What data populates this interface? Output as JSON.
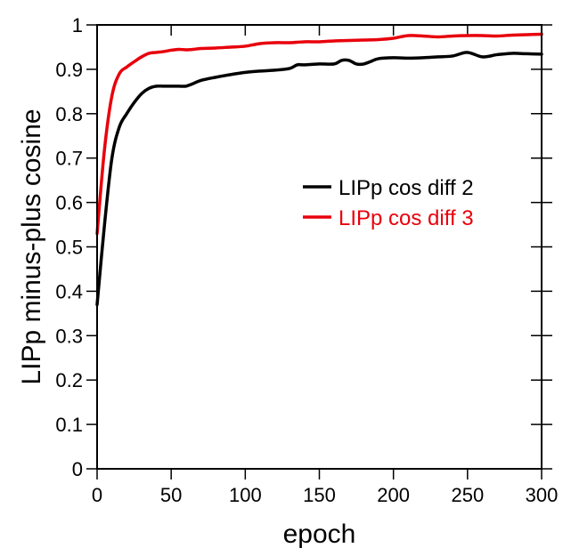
{
  "chart_data": {
    "type": "line",
    "title": "",
    "xlabel": "epoch",
    "ylabel": "LIPp minus-plus cosine",
    "xlim": [
      0,
      300
    ],
    "ylim": [
      0,
      1
    ],
    "xticks": [
      0,
      50,
      100,
      150,
      200,
      250,
      300
    ],
    "yticks": [
      0,
      0.1,
      0.2,
      0.3,
      0.4,
      0.5,
      0.6,
      0.7,
      0.8,
      0.9,
      1
    ],
    "xtick_labels": [
      "0",
      "50",
      "100",
      "150",
      "200",
      "250",
      "300"
    ],
    "ytick_labels": [
      "0",
      "0.1",
      "0.2",
      "0.3",
      "0.4",
      "0.5",
      "0.6",
      "0.7",
      "0.8",
      "0.9",
      "1"
    ],
    "grid": false,
    "legend_position": "center-right",
    "series": [
      {
        "name": "LIPp cos diff 2",
        "color": "#000000",
        "x": [
          0,
          5,
          10,
          15,
          20,
          25,
          30,
          35,
          40,
          45,
          50,
          55,
          60,
          65,
          70,
          80,
          90,
          100,
          110,
          120,
          130,
          135,
          140,
          150,
          160,
          165,
          170,
          175,
          180,
          185,
          190,
          200,
          210,
          220,
          230,
          240,
          250,
          260,
          270,
          280,
          290,
          300
        ],
        "y": [
          0.37,
          0.55,
          0.7,
          0.77,
          0.8,
          0.825,
          0.845,
          0.857,
          0.862,
          0.862,
          0.862,
          0.862,
          0.862,
          0.868,
          0.875,
          0.882,
          0.888,
          0.893,
          0.896,
          0.898,
          0.902,
          0.91,
          0.91,
          0.912,
          0.912,
          0.92,
          0.92,
          0.912,
          0.912,
          0.918,
          0.924,
          0.926,
          0.925,
          0.926,
          0.928,
          0.93,
          0.938,
          0.928,
          0.933,
          0.936,
          0.935,
          0.934
        ]
      },
      {
        "name": "LIPp cos diff 3",
        "color": "#e8000b",
        "x": [
          0,
          5,
          10,
          15,
          20,
          25,
          30,
          35,
          40,
          45,
          50,
          55,
          60,
          65,
          70,
          80,
          90,
          100,
          110,
          120,
          130,
          140,
          150,
          160,
          170,
          180,
          190,
          200,
          210,
          220,
          230,
          240,
          250,
          260,
          270,
          280,
          290,
          300
        ],
        "y": [
          0.53,
          0.72,
          0.84,
          0.89,
          0.905,
          0.917,
          0.928,
          0.936,
          0.938,
          0.94,
          0.943,
          0.945,
          0.944,
          0.945,
          0.947,
          0.948,
          0.95,
          0.952,
          0.958,
          0.96,
          0.96,
          0.962,
          0.962,
          0.964,
          0.965,
          0.966,
          0.967,
          0.97,
          0.976,
          0.975,
          0.973,
          0.975,
          0.976,
          0.976,
          0.975,
          0.977,
          0.978,
          0.979
        ]
      }
    ]
  }
}
